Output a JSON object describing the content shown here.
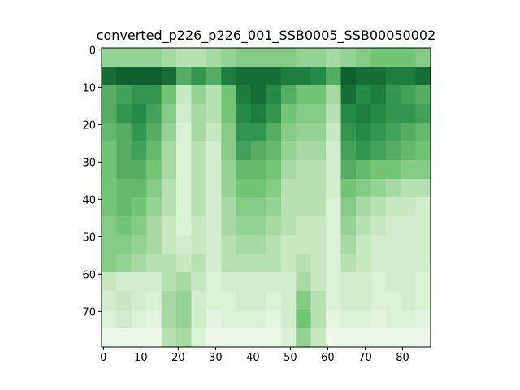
{
  "chart_data": {
    "type": "heatmap",
    "title": "converted_p226_p226_001_SSB0005_SSB00050002",
    "xlim": [
      -0.5,
      87.5
    ],
    "ylim": [
      79.5,
      -0.5
    ],
    "xticks": [
      0,
      10,
      20,
      30,
      40,
      50,
      60,
      70,
      80
    ],
    "yticks": [
      0,
      10,
      20,
      30,
      40,
      50,
      60,
      70
    ],
    "colormap": [
      "#f7fcf5",
      "#c7e9c0",
      "#74c476",
      "#238b45",
      "#00441b"
    ],
    "z": [
      [
        0.4,
        0.4,
        0.4,
        0.4,
        0.35,
        0.3,
        0.3,
        0.35,
        0.4,
        0.45,
        0.45,
        0.45,
        0.45,
        0.4,
        0.4,
        0.35,
        0.4,
        0.45,
        0.5,
        0.5,
        0.5,
        0.45
      ],
      [
        0.85,
        0.9,
        0.9,
        0.9,
        0.85,
        0.6,
        0.7,
        0.6,
        0.8,
        0.85,
        0.85,
        0.85,
        0.8,
        0.8,
        0.75,
        0.6,
        0.9,
        0.85,
        0.85,
        0.8,
        0.8,
        0.85
      ],
      [
        0.6,
        0.65,
        0.7,
        0.7,
        0.5,
        0.25,
        0.4,
        0.3,
        0.5,
        0.8,
        0.85,
        0.75,
        0.6,
        0.5,
        0.5,
        0.35,
        0.85,
        0.75,
        0.8,
        0.7,
        0.65,
        0.6
      ],
      [
        0.6,
        0.7,
        0.75,
        0.65,
        0.45,
        0.2,
        0.35,
        0.3,
        0.5,
        0.75,
        0.8,
        0.7,
        0.5,
        0.45,
        0.45,
        0.3,
        0.75,
        0.8,
        0.75,
        0.7,
        0.7,
        0.65
      ],
      [
        0.55,
        0.6,
        0.7,
        0.6,
        0.4,
        0.15,
        0.35,
        0.25,
        0.45,
        0.7,
        0.7,
        0.6,
        0.45,
        0.4,
        0.4,
        0.25,
        0.7,
        0.75,
        0.7,
        0.65,
        0.6,
        0.55
      ],
      [
        0.5,
        0.6,
        0.65,
        0.55,
        0.35,
        0.15,
        0.3,
        0.2,
        0.45,
        0.65,
        0.6,
        0.55,
        0.4,
        0.35,
        0.35,
        0.2,
        0.65,
        0.7,
        0.65,
        0.6,
        0.55,
        0.5
      ],
      [
        0.5,
        0.6,
        0.6,
        0.5,
        0.35,
        0.15,
        0.3,
        0.2,
        0.4,
        0.55,
        0.55,
        0.5,
        0.35,
        0.3,
        0.3,
        0.2,
        0.6,
        0.55,
        0.5,
        0.5,
        0.45,
        0.45
      ],
      [
        0.5,
        0.55,
        0.55,
        0.45,
        0.3,
        0.15,
        0.3,
        0.2,
        0.4,
        0.5,
        0.5,
        0.45,
        0.3,
        0.3,
        0.3,
        0.2,
        0.5,
        0.45,
        0.4,
        0.35,
        0.3,
        0.3
      ],
      [
        0.5,
        0.55,
        0.5,
        0.4,
        0.3,
        0.15,
        0.3,
        0.2,
        0.35,
        0.45,
        0.45,
        0.4,
        0.3,
        0.3,
        0.3,
        0.15,
        0.45,
        0.35,
        0.3,
        0.25,
        0.25,
        0.2
      ],
      [
        0.45,
        0.5,
        0.45,
        0.35,
        0.25,
        0.15,
        0.25,
        0.2,
        0.35,
        0.4,
        0.4,
        0.35,
        0.3,
        0.25,
        0.25,
        0.15,
        0.4,
        0.3,
        0.25,
        0.2,
        0.2,
        0.2
      ],
      [
        0.45,
        0.45,
        0.4,
        0.35,
        0.25,
        0.2,
        0.25,
        0.2,
        0.3,
        0.35,
        0.35,
        0.3,
        0.25,
        0.25,
        0.25,
        0.15,
        0.35,
        0.25,
        0.2,
        0.2,
        0.2,
        0.2
      ],
      [
        0.45,
        0.4,
        0.35,
        0.3,
        0.3,
        0.25,
        0.3,
        0.2,
        0.3,
        0.3,
        0.3,
        0.3,
        0.25,
        0.3,
        0.25,
        0.15,
        0.3,
        0.25,
        0.2,
        0.2,
        0.2,
        0.2
      ],
      [
        0.25,
        0.2,
        0.2,
        0.2,
        0.3,
        0.35,
        0.25,
        0.15,
        0.2,
        0.2,
        0.2,
        0.2,
        0.2,
        0.35,
        0.25,
        0.15,
        0.2,
        0.2,
        0.15,
        0.2,
        0.2,
        0.15
      ],
      [
        0.2,
        0.25,
        0.2,
        0.15,
        0.35,
        0.4,
        0.2,
        0.15,
        0.15,
        0.2,
        0.2,
        0.15,
        0.2,
        0.45,
        0.3,
        0.15,
        0.2,
        0.2,
        0.15,
        0.15,
        0.2,
        0.15
      ],
      [
        0.15,
        0.2,
        0.15,
        0.1,
        0.35,
        0.4,
        0.2,
        0.1,
        0.15,
        0.15,
        0.15,
        0.1,
        0.2,
        0.5,
        0.3,
        0.1,
        0.15,
        0.15,
        0.1,
        0.15,
        0.15,
        0.1
      ],
      [
        0.05,
        0.05,
        0.05,
        0.05,
        0.3,
        0.35,
        0.15,
        0.05,
        0.05,
        0.05,
        0.05,
        0.05,
        0.15,
        0.4,
        0.25,
        0.05,
        0.05,
        0.05,
        0.05,
        0.05,
        0.05,
        0.05
      ]
    ]
  }
}
